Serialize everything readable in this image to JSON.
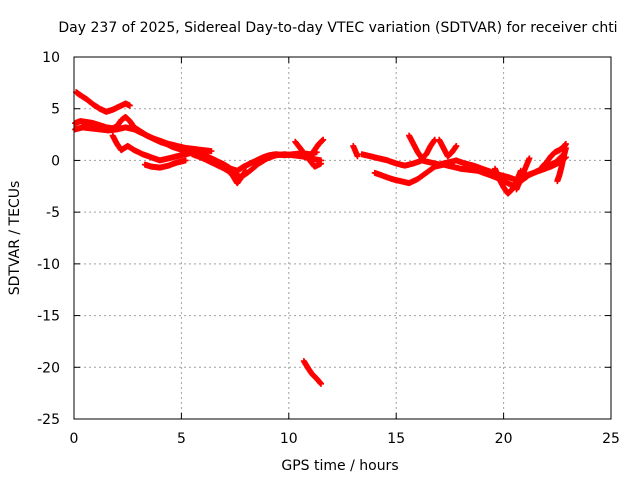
{
  "chart_data": {
    "type": "scatter",
    "title": "Day 237 of 2025, Sidereal Day-to-day VTEC variation (SDTVAR) for receiver chti",
    "xlabel": "GPS time / hours",
    "ylabel": "SDTVAR / TECUs",
    "xlim": [
      0,
      25
    ],
    "ylim": [
      -25,
      10
    ],
    "xticks": [
      0,
      5,
      10,
      15,
      20,
      25
    ],
    "yticks": [
      10,
      5,
      0,
      -5,
      -10,
      -15,
      -20,
      -25
    ],
    "grid": true,
    "legend": "none",
    "marker": "plus",
    "color": "#ff0000",
    "series": [
      {
        "name": "track-1",
        "x": [
          0.1,
          0.3,
          0.6,
          0.9,
          1.2,
          1.5,
          1.8,
          2.1,
          2.4,
          2.6
        ],
        "y": [
          6.6,
          6.3,
          5.9,
          5.4,
          5.0,
          4.7,
          4.9,
          5.2,
          5.5,
          5.3
        ]
      },
      {
        "name": "track-2",
        "x": [
          0.05,
          0.3,
          0.6,
          0.9,
          1.2,
          1.5,
          1.8,
          2.0,
          2.2,
          2.4,
          2.6,
          2.8,
          3.1,
          3.4,
          3.7,
          4.0,
          4.3,
          4.6,
          4.9,
          5.2,
          5.5,
          5.8
        ],
        "y": [
          3.6,
          3.8,
          3.7,
          3.6,
          3.4,
          3.2,
          3.1,
          3.3,
          3.9,
          4.2,
          3.8,
          3.2,
          2.8,
          2.4,
          2.1,
          1.8,
          1.6,
          1.3,
          1.1,
          0.9,
          0.8,
          0.6
        ]
      },
      {
        "name": "track-3",
        "x": [
          0.05,
          0.4,
          0.8,
          1.2,
          1.6,
          2.0,
          2.4,
          2.8,
          3.2,
          3.6,
          4.0,
          4.4,
          4.8,
          5.2,
          5.6,
          6.0,
          6.4
        ],
        "y": [
          3.0,
          3.2,
          3.1,
          3.0,
          2.9,
          3.0,
          3.2,
          3.0,
          2.6,
          2.2,
          1.9,
          1.6,
          1.4,
          1.2,
          1.1,
          1.0,
          0.9
        ]
      },
      {
        "name": "track-4",
        "x": [
          1.8,
          2.0,
          2.2,
          2.5,
          2.8,
          3.2,
          3.6,
          4.0,
          4.4,
          4.8,
          5.2,
          5.6,
          6.0
        ],
        "y": [
          2.4,
          1.6,
          1.0,
          1.4,
          1.0,
          0.6,
          0.3,
          0.0,
          0.2,
          0.4,
          0.6,
          0.8,
          0.9
        ]
      },
      {
        "name": "track-5",
        "x": [
          3.3,
          3.6,
          4.0,
          4.4,
          4.8,
          5.2
        ],
        "y": [
          -0.4,
          -0.6,
          -0.7,
          -0.5,
          -0.2,
          0.0
        ]
      },
      {
        "name": "track-6",
        "x": [
          5.0,
          5.4,
          5.8,
          6.2,
          6.6,
          7.0,
          7.3,
          7.6,
          7.9,
          8.2,
          8.5,
          8.8,
          9.1,
          9.4,
          9.8,
          10.2,
          10.6,
          11.0,
          11.3
        ],
        "y": [
          1.2,
          1.0,
          0.6,
          0.4,
          0.0,
          -0.4,
          -0.8,
          -1.0,
          -0.6,
          -0.3,
          0.0,
          0.3,
          0.5,
          0.6,
          0.5,
          0.6,
          0.7,
          0.6,
          0.8
        ]
      },
      {
        "name": "track-7",
        "x": [
          5.5,
          6.0,
          6.5,
          7.0,
          7.4,
          7.8,
          8.2,
          8.6,
          9.0,
          9.4,
          9.8,
          10.2,
          10.6,
          11.0,
          11.5
        ],
        "y": [
          0.6,
          0.2,
          -0.3,
          -0.8,
          -1.3,
          -1.6,
          -1.0,
          -0.3,
          0.2,
          0.5,
          0.6,
          0.5,
          0.4,
          0.2,
          0.0
        ]
      },
      {
        "name": "track-8",
        "x": [
          7.2,
          7.4,
          7.6,
          7.8,
          8.0
        ],
        "y": [
          -1.0,
          -1.5,
          -2.2,
          -1.6,
          -1.0
        ]
      },
      {
        "name": "track-9",
        "x": [
          10.3,
          10.6,
          10.9,
          11.2,
          11.5
        ],
        "y": [
          1.8,
          1.0,
          0.2,
          -0.6,
          -0.3
        ]
      },
      {
        "name": "track-10",
        "x": [
          11.0,
          11.2,
          11.4,
          11.6
        ],
        "y": [
          0.4,
          1.0,
          1.6,
          2.0
        ]
      },
      {
        "name": "track-11",
        "x": [
          10.7,
          10.9,
          11.1,
          11.3,
          11.5
        ],
        "y": [
          -19.4,
          -20.1,
          -20.7,
          -21.1,
          -21.6
        ]
      },
      {
        "name": "track-12",
        "x": [
          13.0,
          13.2
        ],
        "y": [
          1.4,
          0.4
        ]
      },
      {
        "name": "track-13",
        "x": [
          13.4,
          13.8,
          14.2,
          14.6,
          15.0,
          15.4,
          15.8,
          16.2,
          16.6,
          17.0,
          17.4,
          17.8,
          18.2,
          18.6,
          19.0,
          19.4,
          19.8,
          20.2,
          20.6,
          21.0,
          21.4,
          21.8,
          22.2,
          22.6,
          22.9
        ],
        "y": [
          0.6,
          0.4,
          0.2,
          0.0,
          -0.3,
          -0.5,
          -0.3,
          0.0,
          -0.2,
          -0.4,
          -0.2,
          0.0,
          -0.3,
          -0.5,
          -0.8,
          -1.1,
          -1.4,
          -1.6,
          -1.9,
          -1.5,
          -1.2,
          -0.9,
          -0.6,
          -0.2,
          0.3
        ]
      },
      {
        "name": "track-14",
        "x": [
          14.0,
          14.4,
          14.8,
          15.2,
          15.6,
          16.0,
          16.4,
          16.8,
          17.2,
          17.6,
          18.0,
          18.4,
          18.8,
          19.2,
          19.6,
          20.0,
          20.4,
          20.8,
          21.2,
          21.6,
          22.0,
          22.4,
          22.8
        ],
        "y": [
          -1.2,
          -1.5,
          -1.8,
          -2.0,
          -2.2,
          -1.8,
          -1.2,
          -0.6,
          -0.4,
          -0.6,
          -0.8,
          -0.9,
          -1.0,
          -1.3,
          -1.6,
          -2.0,
          -2.4,
          -2.0,
          -1.4,
          -1.0,
          -0.6,
          -0.2,
          0.6
        ]
      },
      {
        "name": "track-15",
        "x": [
          15.6,
          15.8,
          16.0,
          16.2,
          16.4,
          16.6,
          16.8
        ],
        "y": [
          2.4,
          1.6,
          0.8,
          0.2,
          0.6,
          1.4,
          2.0
        ]
      },
      {
        "name": "track-16",
        "x": [
          17.0,
          17.2,
          17.4,
          17.6,
          17.8
        ],
        "y": [
          2.0,
          1.2,
          0.4,
          0.8,
          1.4
        ]
      },
      {
        "name": "track-17",
        "x": [
          19.6,
          19.8,
          20.0,
          20.2,
          20.4,
          20.6,
          20.8
        ],
        "y": [
          -0.8,
          -1.8,
          -2.6,
          -3.2,
          -2.8,
          -2.0,
          -1.0
        ]
      },
      {
        "name": "track-18",
        "x": [
          20.6,
          20.8,
          21.0,
          21.2
        ],
        "y": [
          -2.8,
          -1.8,
          -0.8,
          0.2
        ]
      },
      {
        "name": "track-19",
        "x": [
          21.8,
          22.0,
          22.2,
          22.4,
          22.6,
          22.8,
          22.9
        ],
        "y": [
          -0.6,
          -0.2,
          0.4,
          0.8,
          1.0,
          1.3,
          1.6
        ]
      },
      {
        "name": "track-20",
        "x": [
          22.5,
          22.6,
          22.7,
          22.8,
          22.9
        ],
        "y": [
          -2.0,
          -1.4,
          -0.6,
          0.4,
          1.2
        ]
      }
    ]
  }
}
